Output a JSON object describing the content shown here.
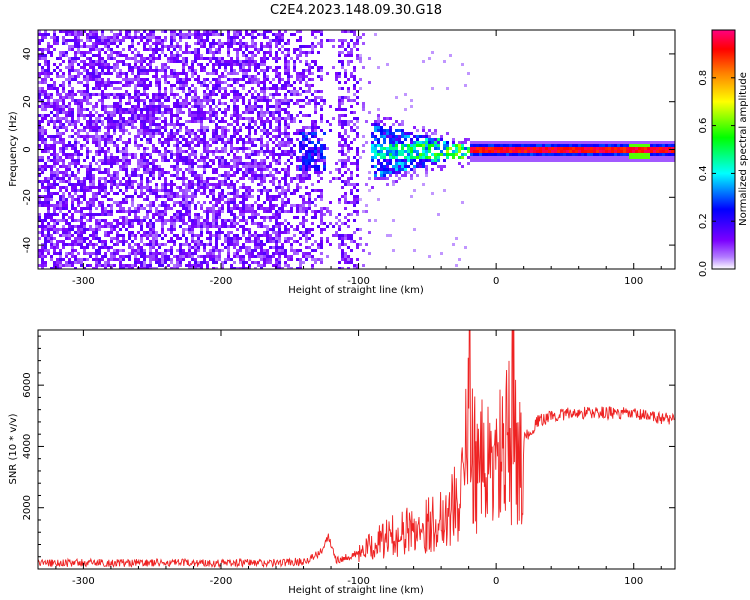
{
  "title": "C2E4.2023.148.09.30.G18",
  "chart_data": [
    {
      "type": "heatmap",
      "xlabel": "Height of straight line (km)",
      "ylabel": "Frequency (Hz)",
      "xlim": [
        -333,
        130
      ],
      "ylim": [
        -50,
        50
      ],
      "xticks": [
        -300,
        -200,
        -100,
        0,
        100
      ],
      "yticks": [
        -40,
        -20,
        0,
        20,
        40
      ],
      "colorbar": {
        "label": "Normalized spectral amplitude",
        "range": [
          0,
          1
        ],
        "ticks": [
          0.0,
          0.2,
          0.4,
          0.6,
          0.8
        ],
        "colors": [
          "#ffffff",
          "#7b00ff",
          "#0000ff",
          "#00ffff",
          "#00ff00",
          "#ffff00",
          "#ff8000",
          "#ff0000",
          "#ff0080"
        ]
      },
      "regions": [
        {
          "x": [
            -333,
            -100
          ],
          "description": "broadband noise, amplitude ~0.05-0.15"
        },
        {
          "x": [
            -100,
            -20
          ],
          "y_center": 0,
          "y_halfwidth": [
            12,
            2
          ],
          "amplitude": [
            0.2,
            0.5
          ]
        },
        {
          "x": [
            -20,
            130
          ],
          "y_center": 0,
          "y_halfwidth": 2,
          "amplitude": [
            0.85,
            1.0
          ]
        }
      ]
    },
    {
      "type": "line",
      "xlabel": "Height of straight line (km)",
      "ylabel": "SNR (10 * v/v)",
      "xlim": [
        -333,
        130
      ],
      "ylim": [
        0,
        7800
      ],
      "xticks": [
        -300,
        -200,
        -100,
        0,
        100
      ],
      "yticks": [
        2000,
        4000,
        6000
      ],
      "series": [
        {
          "color": "#ee2222",
          "x": [
            -333,
            -280,
            -220,
            -160,
            -140,
            -128,
            -122,
            -116,
            -100,
            -80,
            -60,
            -45,
            -35,
            -27,
            -22,
            -19,
            -17,
            -14,
            -10,
            -6,
            -2,
            2,
            6,
            10,
            11,
            12,
            14,
            20,
            30,
            40,
            60,
            80,
            100,
            115,
            130
          ],
          "y": [
            200,
            200,
            200,
            200,
            250,
            500,
            1100,
            300,
            500,
            1000,
            1300,
            1500,
            1900,
            2200,
            3700,
            5800,
            4300,
            3000,
            3400,
            3300,
            3300,
            3600,
            3800,
            4200,
            1500,
            7800,
            3800,
            4200,
            4800,
            5000,
            5100,
            5100,
            5050,
            4950,
            4900
          ]
        }
      ]
    }
  ]
}
